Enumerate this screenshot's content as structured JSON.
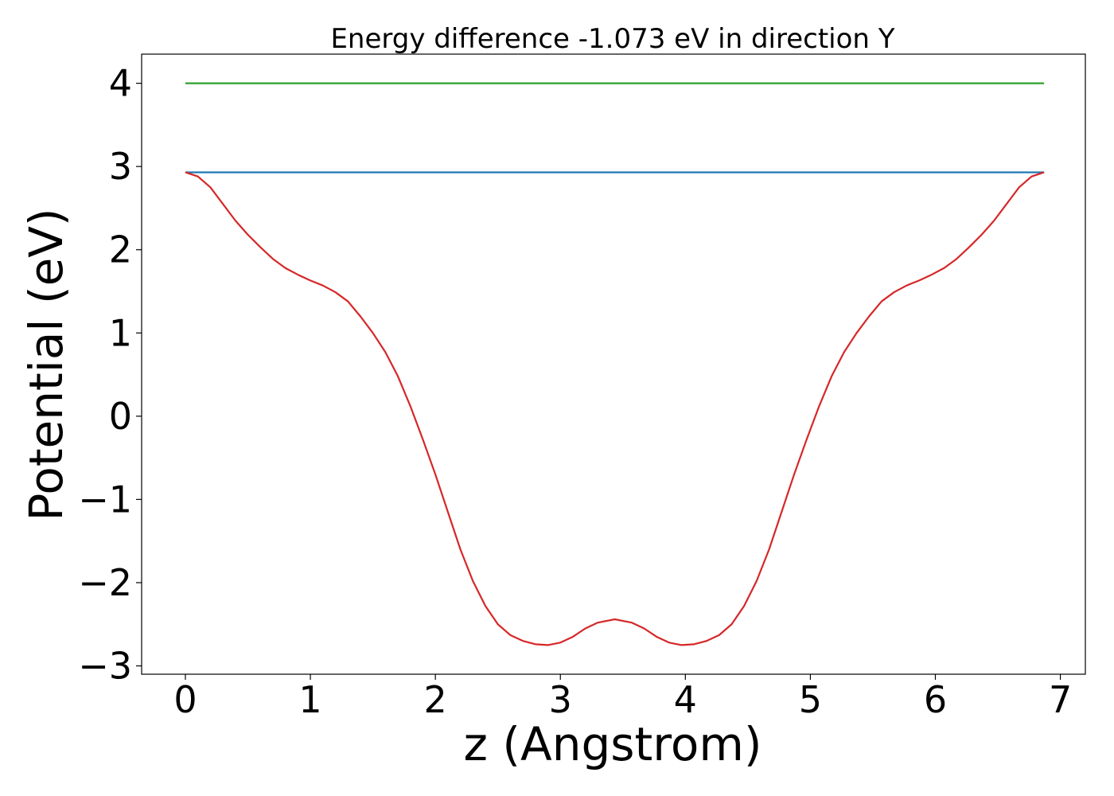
{
  "chart_data": {
    "type": "line",
    "title": "Energy difference -1.073 eV in direction Y",
    "xlabel": "z (Angstrom)",
    "ylabel": "Potential (eV)",
    "xlim": [
      -0.35,
      7.2
    ],
    "ylim": [
      -3.1,
      4.35
    ],
    "x_ticks": [
      0,
      1,
      2,
      3,
      4,
      5,
      6,
      7
    ],
    "x_tick_labels": [
      "0",
      "1",
      "2",
      "3",
      "4",
      "5",
      "6",
      "7"
    ],
    "y_ticks": [
      -3,
      -2,
      -1,
      0,
      1,
      2,
      3,
      4
    ],
    "y_tick_labels": [
      "−3",
      "−2",
      "−1",
      "0",
      "1",
      "2",
      "3",
      "4"
    ],
    "grid": false,
    "series": [
      {
        "color": "#2ca02c",
        "x": [
          0,
          6.87
        ],
        "y": [
          4.0,
          4.0
        ]
      },
      {
        "color": "#1f77b4",
        "x": [
          0,
          6.87
        ],
        "y": [
          2.93,
          2.93
        ]
      },
      {
        "color": "#d62728",
        "x": [
          0,
          0.1,
          0.2,
          0.3,
          0.4,
          0.5,
          0.6,
          0.7,
          0.8,
          0.9,
          1.0,
          1.1,
          1.2,
          1.3,
          1.4,
          1.5,
          1.6,
          1.7,
          1.8,
          1.9,
          2.0,
          2.1,
          2.2,
          2.3,
          2.4,
          2.5,
          2.6,
          2.7,
          2.8,
          2.9,
          3.0,
          3.1,
          3.2,
          3.3,
          3.435,
          3.57,
          3.67,
          3.77,
          3.87,
          3.97,
          4.07,
          4.17,
          4.27,
          4.37,
          4.47,
          4.57,
          4.67,
          4.77,
          4.87,
          4.97,
          5.07,
          5.17,
          5.27,
          5.37,
          5.47,
          5.57,
          5.67,
          5.77,
          5.87,
          5.97,
          6.07,
          6.17,
          6.27,
          6.37,
          6.47,
          6.57,
          6.67,
          6.77,
          6.87
        ],
        "y": [
          2.93,
          2.88,
          2.75,
          2.55,
          2.35,
          2.18,
          2.03,
          1.89,
          1.78,
          1.7,
          1.63,
          1.57,
          1.49,
          1.38,
          1.2,
          1.0,
          0.77,
          0.48,
          0.12,
          -0.28,
          -0.7,
          -1.15,
          -1.6,
          -1.98,
          -2.28,
          -2.5,
          -2.63,
          -2.7,
          -2.74,
          -2.75,
          -2.72,
          -2.65,
          -2.55,
          -2.48,
          -2.44,
          -2.48,
          -2.55,
          -2.65,
          -2.72,
          -2.75,
          -2.74,
          -2.7,
          -2.63,
          -2.5,
          -2.28,
          -1.98,
          -1.6,
          -1.15,
          -0.7,
          -0.28,
          0.12,
          0.48,
          0.77,
          1.0,
          1.2,
          1.38,
          1.49,
          1.57,
          1.63,
          1.7,
          1.78,
          1.89,
          2.03,
          2.18,
          2.35,
          2.55,
          2.75,
          2.88,
          2.93
        ]
      }
    ]
  }
}
